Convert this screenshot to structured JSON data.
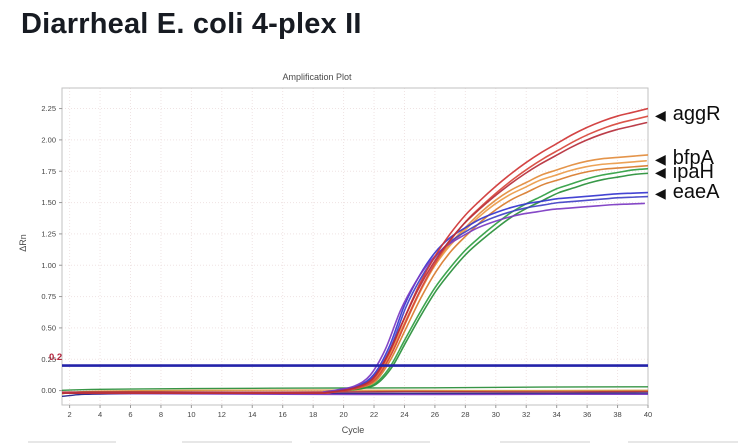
{
  "page": {
    "title": "Diarrheal E. coli 4-plex II"
  },
  "chart_data": {
    "type": "line",
    "title": "Amplification Plot",
    "xlabel": "Cycle",
    "ylabel": "ΔRn",
    "xlim": [
      1.5,
      40
    ],
    "ylim": [
      -0.115,
      2.414
    ],
    "xticks": [
      2,
      4,
      6,
      8,
      10,
      12,
      14,
      16,
      18,
      20,
      22,
      24,
      26,
      28,
      30,
      32,
      34,
      36,
      38,
      40
    ],
    "yticks": [
      0.0,
      0.25,
      0.5,
      0.75,
      1.0,
      1.25,
      1.5,
      1.75,
      2.0,
      2.25
    ],
    "grid": true,
    "legend_position": "right-annotations",
    "threshold": {
      "value": 0.2,
      "label": "0.2"
    },
    "colors": {
      "threshold_line": "#2323aa",
      "threshold_label": "#b3243c",
      "grid": "#efe3e3",
      "border": "#c2c2c2",
      "tick": "#999999",
      "tick_text": "#444444"
    },
    "series": [
      {
        "label": "aggR",
        "label_value": 2.2,
        "colors": [
          "#cf3434",
          "#d8453a",
          "#b52c3a"
        ],
        "replicate_scales": [
          1.0,
          0.975,
          0.95
        ],
        "replicate_shifts": [
          0,
          0.15,
          -0.1
        ],
        "x": [
          1,
          10,
          18,
          19,
          20,
          21,
          22,
          23,
          24,
          25,
          26,
          27,
          28,
          29,
          30,
          31,
          32,
          33,
          34,
          35,
          36,
          37,
          38,
          39,
          40
        ],
        "y": [
          -0.02,
          -0.02,
          -0.02,
          -0.015,
          0.0,
          0.03,
          0.1,
          0.3,
          0.58,
          0.85,
          1.07,
          1.25,
          1.4,
          1.52,
          1.63,
          1.73,
          1.82,
          1.9,
          1.97,
          2.04,
          2.1,
          2.15,
          2.19,
          2.22,
          2.25
        ]
      },
      {
        "label": "bfpA",
        "label_value": 1.85,
        "colors": [
          "#e28b3b",
          "#ea9a48",
          "#d87b2c"
        ],
        "replicate_scales": [
          1.0,
          0.975,
          0.955
        ],
        "replicate_shifts": [
          0,
          -0.12,
          0.1
        ],
        "x": [
          1,
          10,
          18,
          19,
          20,
          21,
          22,
          23,
          24,
          25,
          26,
          27,
          28,
          29,
          30,
          31,
          32,
          33,
          34,
          35,
          36,
          37,
          38,
          39,
          40
        ],
        "y": [
          -0.02,
          -0.02,
          -0.02,
          -0.015,
          0.0,
          0.025,
          0.08,
          0.26,
          0.52,
          0.78,
          1.0,
          1.17,
          1.3,
          1.42,
          1.52,
          1.6,
          1.66,
          1.72,
          1.76,
          1.8,
          1.83,
          1.85,
          1.86,
          1.87,
          1.88
        ]
      },
      {
        "label": "ipaH",
        "label_value": 1.74,
        "colors": [
          "#2e9e41",
          "#278f38"
        ],
        "replicate_scales": [
          1.0,
          0.98
        ],
        "replicate_shifts": [
          0,
          0.12
        ],
        "x": [
          1,
          10,
          18,
          19,
          20,
          21,
          22,
          23,
          24,
          25,
          26,
          27,
          28,
          29,
          30,
          31,
          32,
          33,
          34,
          35,
          36,
          37,
          38,
          39,
          40
        ],
        "y": [
          -0.02,
          -0.02,
          -0.02,
          -0.01,
          0.0,
          0.015,
          0.05,
          0.18,
          0.4,
          0.62,
          0.82,
          0.98,
          1.12,
          1.23,
          1.33,
          1.42,
          1.49,
          1.55,
          1.61,
          1.65,
          1.69,
          1.72,
          1.74,
          1.76,
          1.77
        ]
      },
      {
        "label": "eaeA",
        "label_value": 1.58,
        "colors": [
          "#3434cf",
          "#4040c6",
          "#7b38c2"
        ],
        "replicate_scales": [
          1.0,
          0.98,
          0.945
        ],
        "replicate_shifts": [
          0,
          0.1,
          -0.25
        ],
        "x": [
          1,
          10,
          18,
          19,
          20,
          21,
          22,
          23,
          24,
          25,
          26,
          27,
          28,
          29,
          30,
          31,
          32,
          33,
          34,
          35,
          36,
          37,
          38,
          39,
          40
        ],
        "y": [
          -0.02,
          -0.02,
          -0.02,
          -0.01,
          0.01,
          0.04,
          0.13,
          0.35,
          0.68,
          0.92,
          1.1,
          1.22,
          1.3,
          1.37,
          1.42,
          1.46,
          1.49,
          1.51,
          1.53,
          1.54,
          1.55,
          1.56,
          1.57,
          1.575,
          1.58
        ]
      }
    ],
    "baselines": [
      {
        "color": "#2c8f3c",
        "points": [
          [
            1,
            0.0
          ],
          [
            4,
            0.01
          ],
          [
            10,
            0.016
          ],
          [
            18,
            0.02
          ],
          [
            26,
            0.022
          ],
          [
            33,
            0.028
          ],
          [
            40,
            0.03
          ]
        ]
      },
      {
        "color": "#d8913f",
        "points": [
          [
            1,
            -0.038
          ],
          [
            2,
            -0.018
          ],
          [
            4,
            -0.004
          ],
          [
            10,
            0.002
          ],
          [
            18,
            0.004
          ],
          [
            28,
            0.0
          ],
          [
            40,
            0.002
          ]
        ]
      },
      {
        "color": "#b03036",
        "points": [
          [
            1,
            -0.012
          ],
          [
            8,
            -0.01
          ],
          [
            16,
            -0.012
          ],
          [
            24,
            -0.008
          ],
          [
            32,
            -0.01
          ],
          [
            40,
            -0.008
          ]
        ]
      },
      {
        "color": "#232388",
        "points": [
          [
            1,
            -0.052
          ],
          [
            2,
            -0.04
          ],
          [
            3,
            -0.03
          ],
          [
            6,
            -0.024
          ],
          [
            12,
            -0.02
          ],
          [
            20,
            -0.022
          ],
          [
            30,
            -0.022
          ],
          [
            40,
            -0.02
          ]
        ]
      },
      {
        "color": "#7b38c2",
        "points": [
          [
            1,
            -0.02
          ],
          [
            8,
            -0.026
          ],
          [
            16,
            -0.03
          ],
          [
            26,
            -0.032
          ],
          [
            34,
            -0.03
          ],
          [
            40,
            -0.03
          ]
        ]
      }
    ]
  }
}
